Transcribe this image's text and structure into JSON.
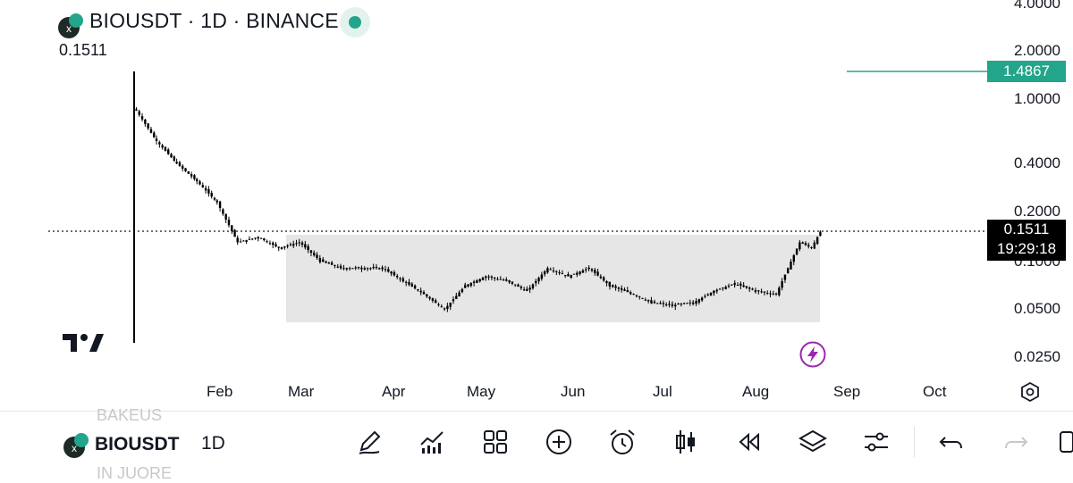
{
  "header": {
    "symbol": "BIOUSDT",
    "interval": "1D",
    "exchange": "BINANCE",
    "title": "BIOUSDT · 1D · BINANCE",
    "last_price": "0.1511",
    "status_color": "#22a58a"
  },
  "price_tags": {
    "green_line": "1.4867",
    "current_price": "0.1511",
    "countdown": "19:29:18"
  },
  "colors": {
    "accent": "#22a58a",
    "range_box": "#e6e6e6",
    "candles": "#000000"
  },
  "chart_data": {
    "type": "candlestick",
    "scale": "log",
    "y_ticks": [
      "4.0000",
      "2.0000",
      "1.0000",
      "0.4000",
      "0.2000",
      "0.1000",
      "0.0500",
      "0.0250"
    ],
    "x_ticks": [
      "Feb",
      "Mar",
      "Apr",
      "May",
      "Jun",
      "Jul",
      "Aug",
      "Sep",
      "Oct"
    ],
    "series_close_approx": [
      {
        "date": "Jan 3",
        "value": 0.85
      },
      {
        "date": "Jan 10",
        "value": 0.55
      },
      {
        "date": "Jan 17",
        "value": 0.4
      },
      {
        "date": "Jan 24",
        "value": 0.31
      },
      {
        "date": "Jan 31",
        "value": 0.23
      },
      {
        "date": "Feb 7",
        "value": 0.13
      },
      {
        "date": "Feb 14",
        "value": 0.14
      },
      {
        "date": "Feb 21",
        "value": 0.12
      },
      {
        "date": "Feb 28",
        "value": 0.13
      },
      {
        "date": "Mar 7",
        "value": 0.1
      },
      {
        "date": "Mar 14",
        "value": 0.09
      },
      {
        "date": "Mar 21",
        "value": 0.09
      },
      {
        "date": "Mar 28",
        "value": 0.09
      },
      {
        "date": "Apr 4",
        "value": 0.075
      },
      {
        "date": "Apr 11",
        "value": 0.062
      },
      {
        "date": "Apr 18",
        "value": 0.05
      },
      {
        "date": "Apr 25",
        "value": 0.07
      },
      {
        "date": "May 2",
        "value": 0.08
      },
      {
        "date": "May 9",
        "value": 0.075
      },
      {
        "date": "May 16",
        "value": 0.065
      },
      {
        "date": "May 23",
        "value": 0.09
      },
      {
        "date": "May 30",
        "value": 0.08
      },
      {
        "date": "Jun 6",
        "value": 0.09
      },
      {
        "date": "Jun 13",
        "value": 0.07
      },
      {
        "date": "Jun 20",
        "value": 0.063
      },
      {
        "date": "Jun 27",
        "value": 0.055
      },
      {
        "date": "Jul 4",
        "value": 0.053
      },
      {
        "date": "Jul 11",
        "value": 0.055
      },
      {
        "date": "Jul 18",
        "value": 0.065
      },
      {
        "date": "Jul 25",
        "value": 0.072
      },
      {
        "date": "Aug 1",
        "value": 0.065
      },
      {
        "date": "Aug 8",
        "value": 0.062
      },
      {
        "date": "Aug 12",
        "value": 0.09
      },
      {
        "date": "Aug 16",
        "value": 0.13
      },
      {
        "date": "Aug 20",
        "value": 0.12
      },
      {
        "date": "Aug 23",
        "value": 0.1511
      }
    ],
    "range_box": {
      "top": 0.14,
      "bottom": 0.045,
      "from": "Feb 24",
      "to": "Aug 23"
    },
    "horizontal_line": 1.4867,
    "price_line": 0.1511,
    "grid": false
  },
  "toolbar": {
    "symbol": "BIOUSDT",
    "interval": "1D",
    "ghost_top": "BAKEUS",
    "ghost_bottom": "IN JUORE",
    "icons": [
      "pencil-icon",
      "indicators-icon",
      "layout-grid-icon",
      "add-circle-icon",
      "alarm-icon",
      "candles-icon",
      "replay-icon",
      "layers-icon",
      "settings-sliders-icon",
      "undo-icon",
      "redo-icon",
      "more-icon"
    ]
  }
}
